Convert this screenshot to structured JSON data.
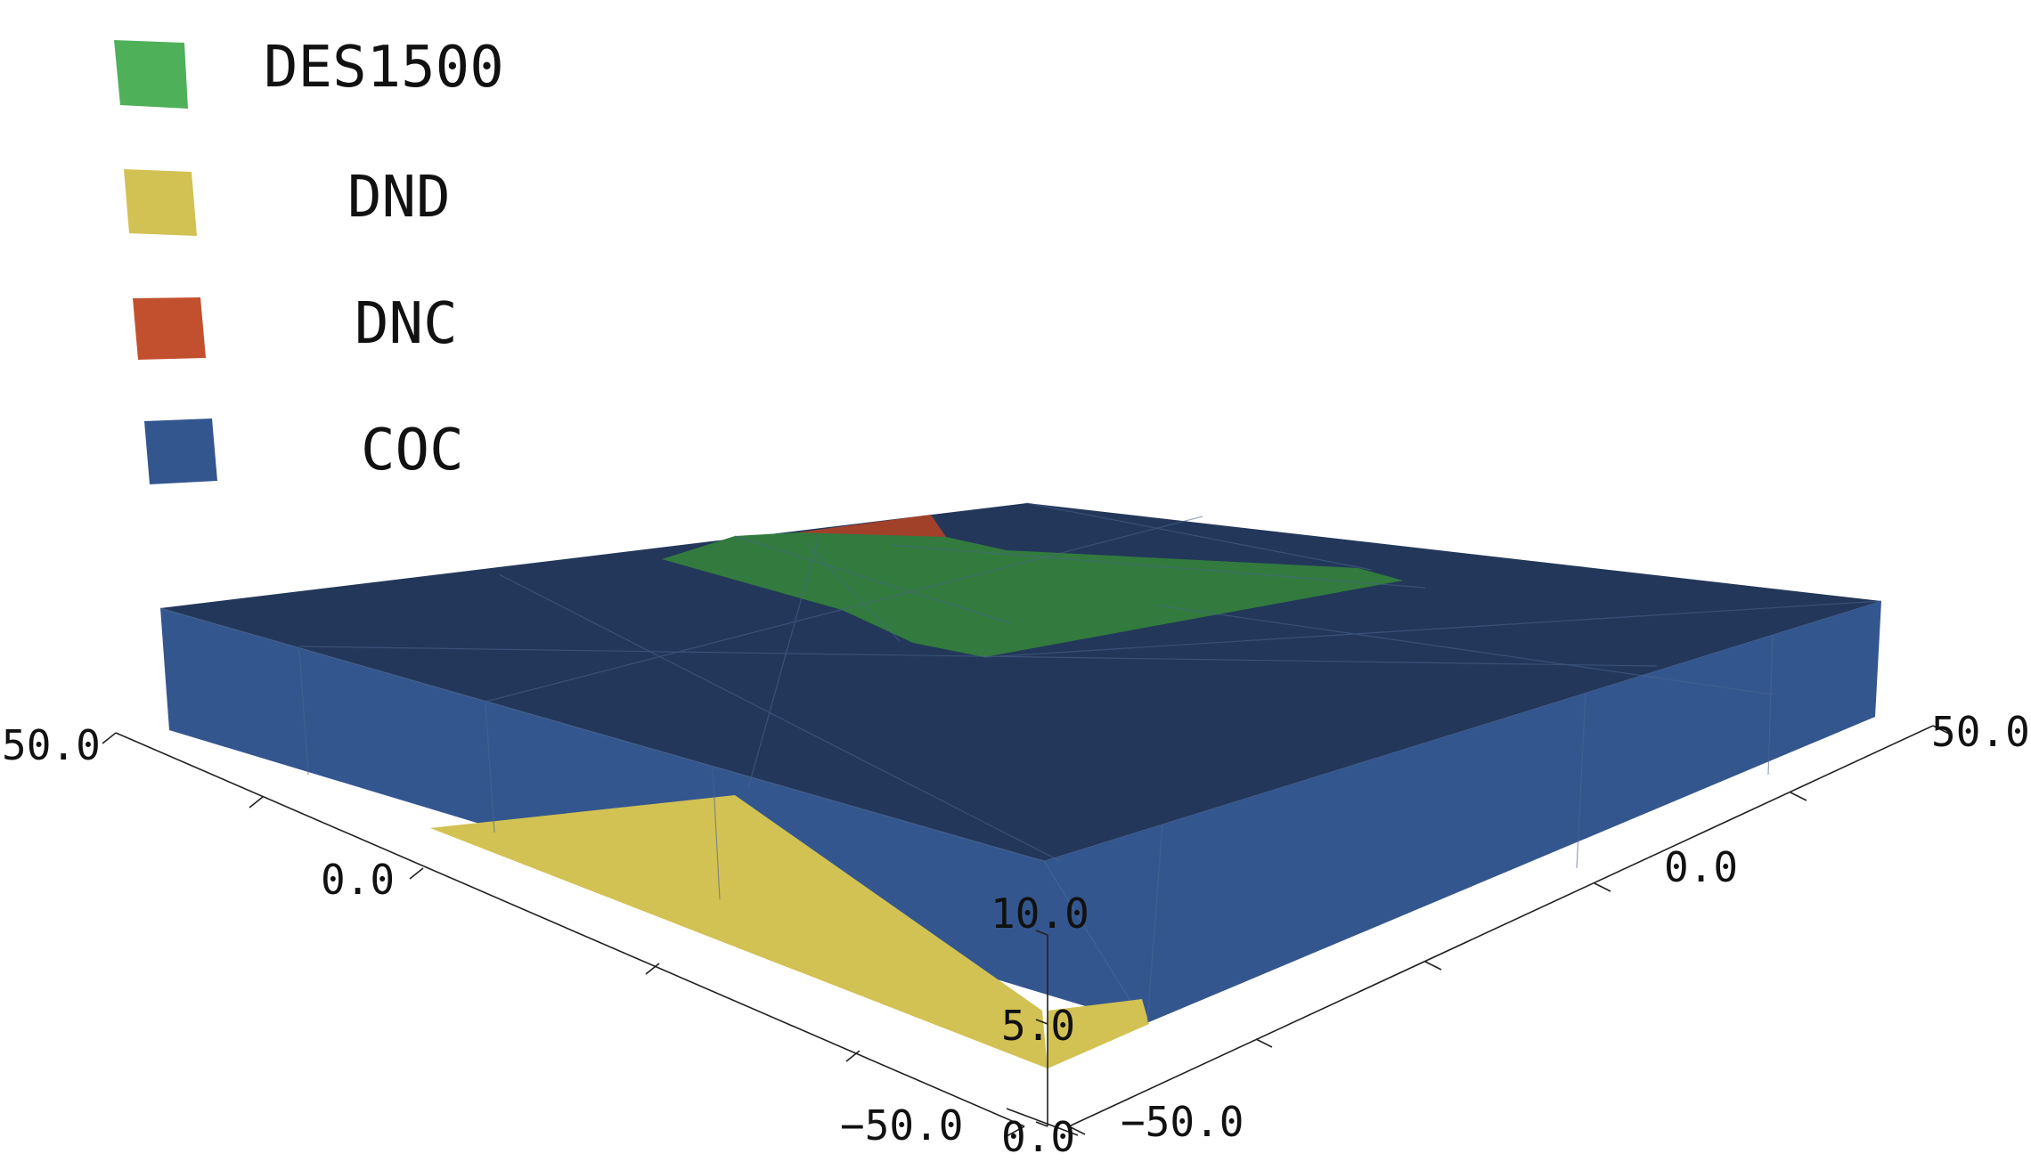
{
  "legend": [
    {
      "label": "DES1500",
      "color": "#4fb05a"
    },
    {
      "label": "DND",
      "color": "#d2c153"
    },
    {
      "label": "DNC",
      "color": "#c2502f"
    },
    {
      "label": "COC",
      "color": "#34568e"
    }
  ],
  "axes": {
    "x_ticks": [
      "50.0",
      "0.0",
      "-50.0"
    ],
    "y_ticks": [
      "50.0",
      "0.0",
      "-50.0"
    ],
    "z_ticks": [
      "10.0",
      "5.0",
      "0.0"
    ]
  },
  "colors": {
    "top_surface": "#23375a",
    "side_surface": "#34568e",
    "des1500_surface": "#327a3e",
    "dnd_surface": "#d2c153",
    "dnc_surface": "#a1412a",
    "grid_line": "#4b6792",
    "axis_line": "#222222"
  }
}
